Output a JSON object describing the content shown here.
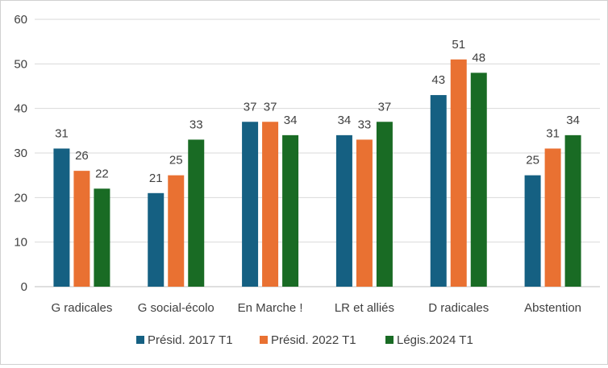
{
  "chart_data": {
    "type": "bar",
    "title": "",
    "xlabel": "",
    "ylabel": "",
    "ylim": [
      0,
      60
    ],
    "yticks": [
      0,
      10,
      20,
      30,
      40,
      50,
      60
    ],
    "grid": true,
    "legend_position": "bottom",
    "categories": [
      "G radicales",
      "G social-écolo",
      "En Marche !",
      "LR et alliés",
      "D radicales",
      "Abstention"
    ],
    "series": [
      {
        "name": "Présid. 2017 T1",
        "color": "#156082",
        "values": [
          31,
          21,
          37,
          34,
          43,
          25
        ]
      },
      {
        "name": "Présid. 2022 T1",
        "color": "#E97132",
        "values": [
          26,
          25,
          37,
          33,
          51,
          31
        ]
      },
      {
        "name": "Légis.2024 T1",
        "color": "#196B24",
        "values": [
          22,
          33,
          34,
          37,
          48,
          34
        ]
      }
    ]
  }
}
